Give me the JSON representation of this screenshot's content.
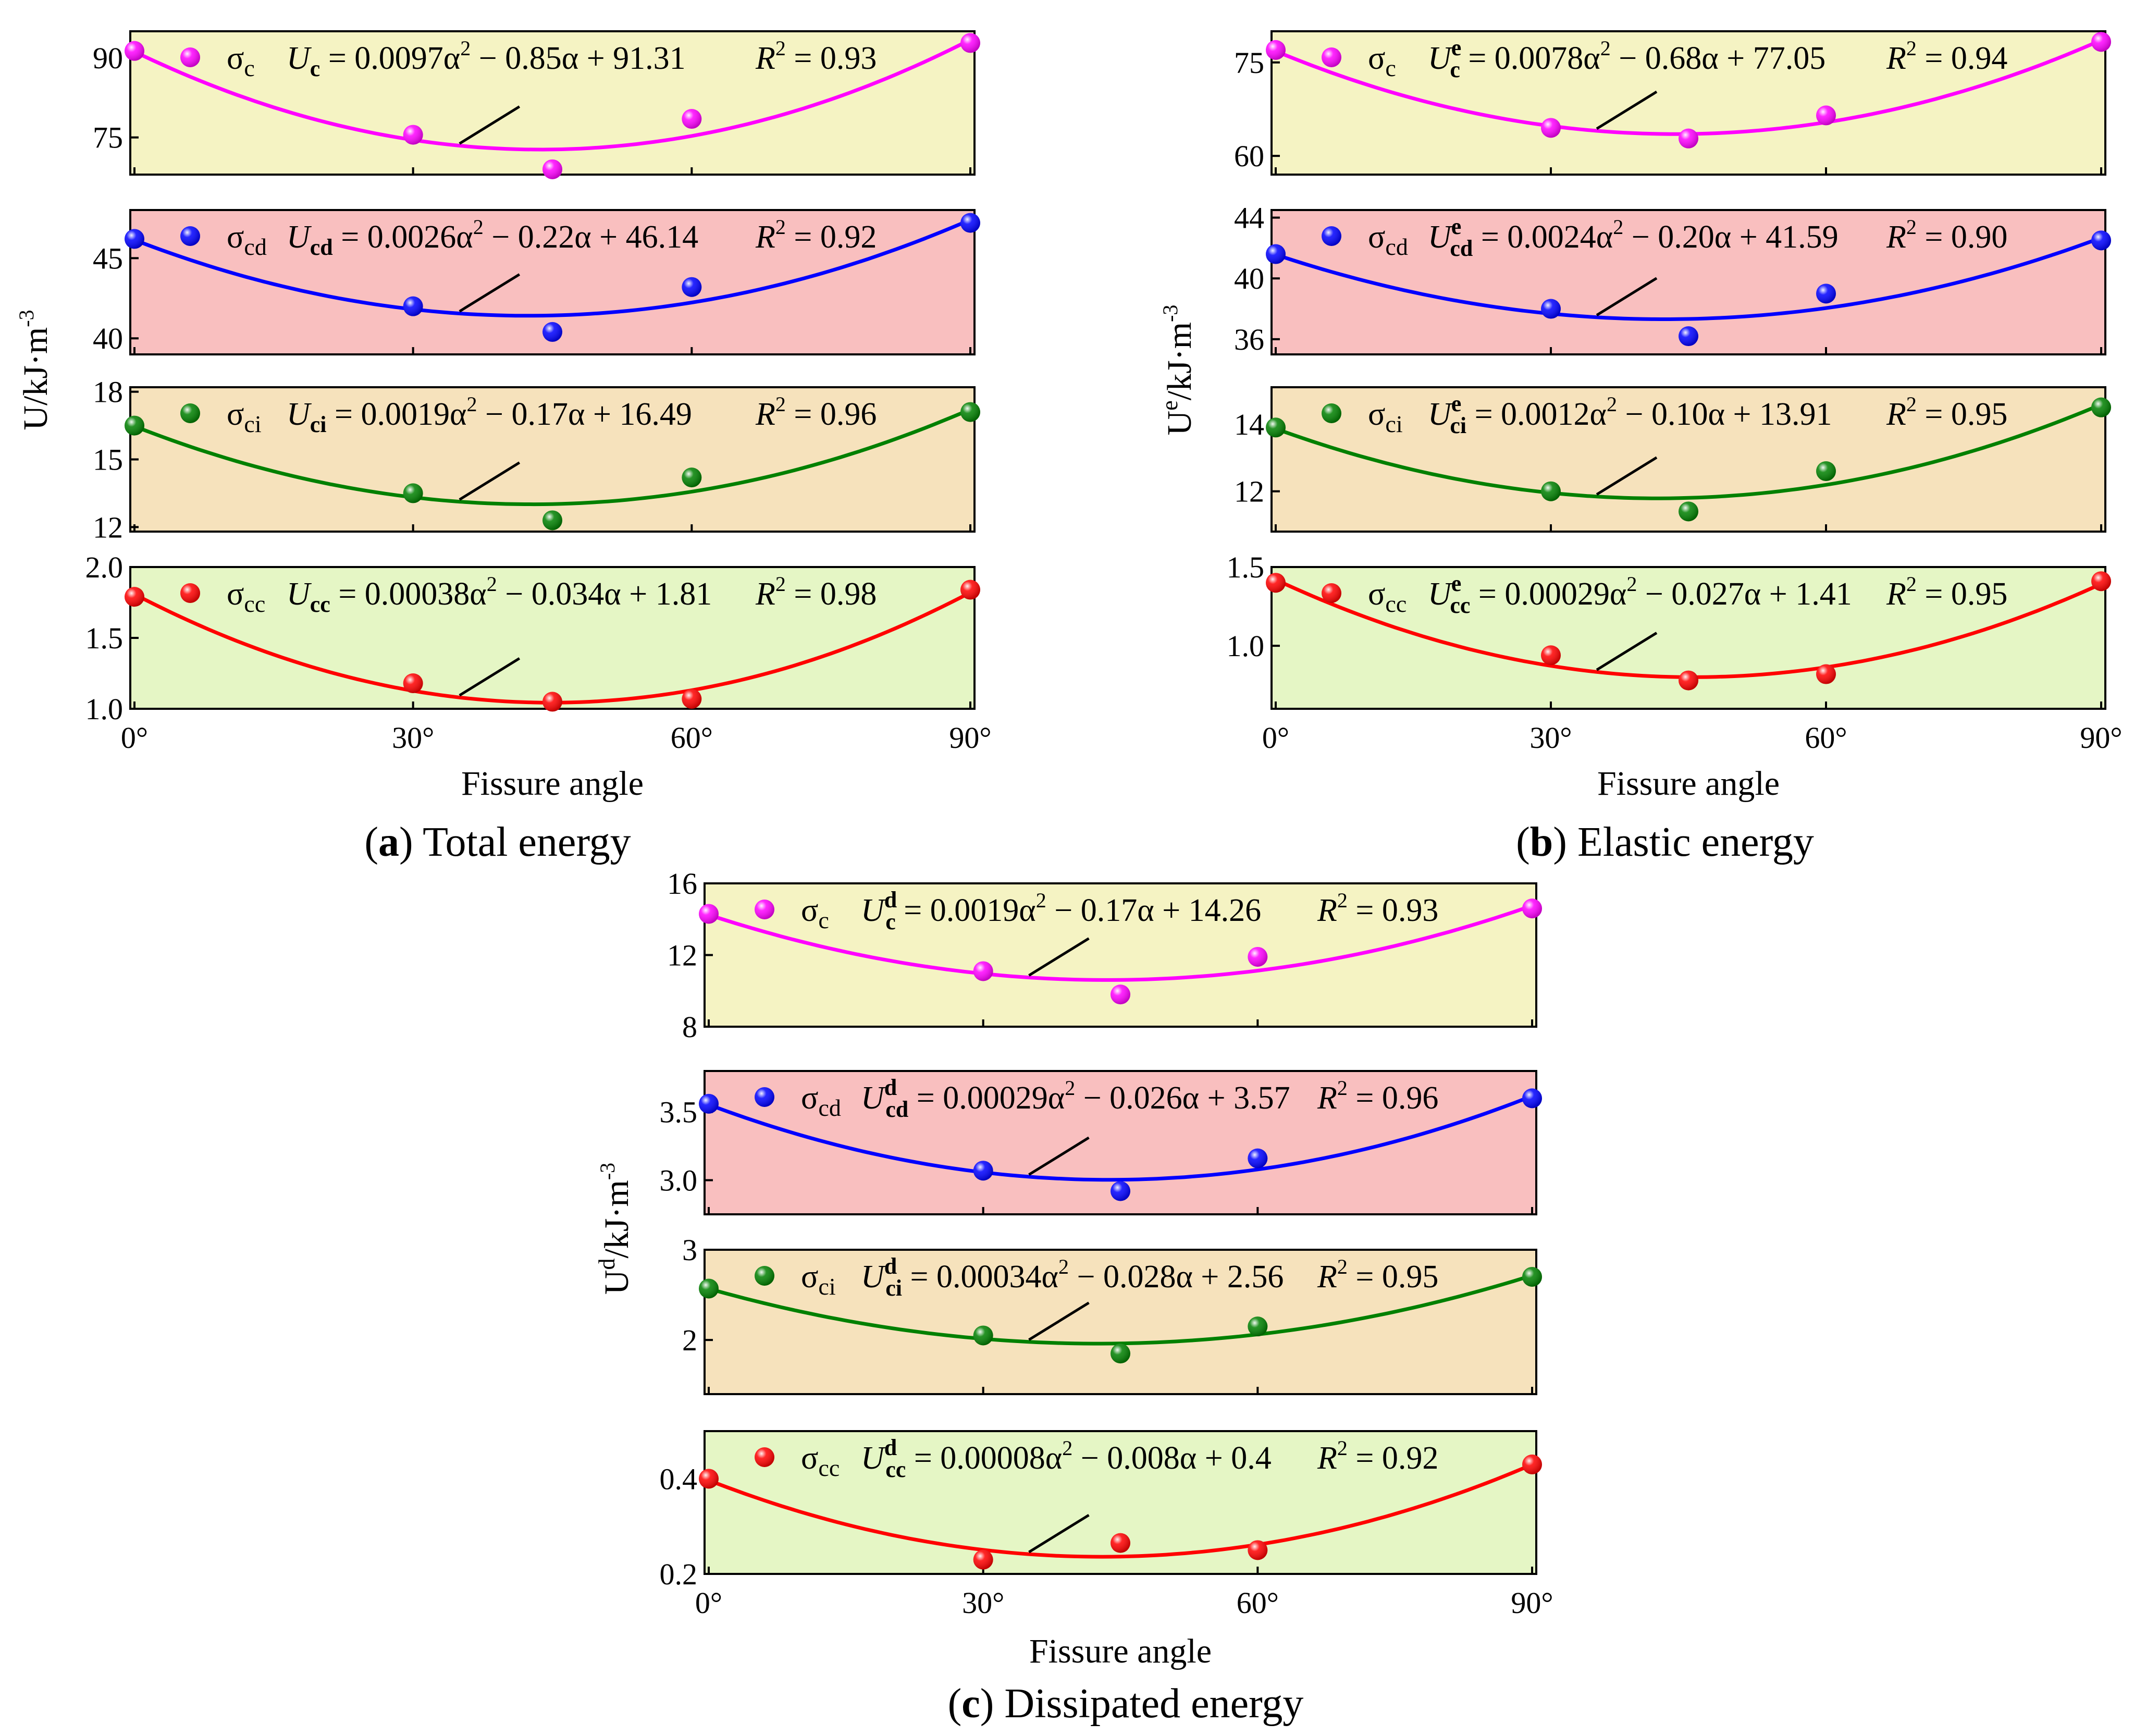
{
  "panels": [
    {
      "id": "a",
      "caption": {
        "letter": "a",
        "text": "Total energy"
      },
      "ylabel": {
        "base": "U",
        "sup": "",
        "unit": "/kJ·m",
        "unit_sup": "-3"
      },
      "xlabel": "Fissure angle",
      "xticks": [
        "0°",
        "30°",
        "60°",
        "90°"
      ],
      "subplots": [
        {
          "bg": "#f5f3c3",
          "color": "#ff00ff",
          "legend": {
            "sym": "σ",
            "sub": "c"
          },
          "eq": {
            "u": "U",
            "sub": "c",
            "sup": "",
            "a2": "0.0097",
            "a1": "0.85",
            "c": "91.31"
          },
          "r2": "0.93",
          "ylim": [
            68,
            95
          ],
          "yticks": [
            "90",
            "75"
          ],
          "yticks_values": [
            90,
            75
          ],
          "chart_data": {
            "type": "scatter",
            "x": [
              0,
              30,
              45,
              60,
              90
            ],
            "y": [
              91.3,
              75.5,
              69.0,
              78.5,
              92.8
            ]
          }
        },
        {
          "bg": "#f9bfbf",
          "color": "#0000ff",
          "legend": {
            "sym": "σ",
            "sub": "cd"
          },
          "eq": {
            "u": "U",
            "sub": "cd",
            "sup": "",
            "a2": "0.0026",
            "a1": "0.22",
            "c": "46.14"
          },
          "r2": "0.92",
          "ylim": [
            39,
            48
          ],
          "yticks": [
            "45",
            "40"
          ],
          "yticks_values": [
            45,
            40
          ],
          "chart_data": {
            "type": "scatter",
            "x": [
              0,
              30,
              45,
              60,
              90
            ],
            "y": [
              46.2,
              42.0,
              40.4,
              43.2,
              47.2
            ]
          }
        },
        {
          "bg": "#f6e2bc",
          "color": "#008000",
          "legend": {
            "sym": "σ",
            "sub": "ci"
          },
          "eq": {
            "u": "U",
            "sub": "ci",
            "sup": "",
            "a2": "0.0019",
            "a1": "0.17",
            "c": "16.49"
          },
          "r2": "0.96",
          "ylim": [
            11.8,
            18.2
          ],
          "yticks": [
            "18",
            "15",
            "12"
          ],
          "yticks_values": [
            18,
            15,
            12
          ],
          "chart_data": {
            "type": "scatter",
            "x": [
              0,
              30,
              45,
              60,
              90
            ],
            "y": [
              16.5,
              13.5,
              12.3,
              14.2,
              17.1
            ]
          }
        },
        {
          "bg": "#e5f6c5",
          "color": "#ff0000",
          "legend": {
            "sym": "σ",
            "sub": "cc"
          },
          "eq": {
            "u": "U",
            "sub": "cc",
            "sup": "",
            "a2": "0.00038",
            "a1": "0.034",
            "c": "1.81"
          },
          "r2": "0.98",
          "ylim": [
            1.0,
            2.0
          ],
          "yticks": [
            "2.0",
            "1.5",
            "1.0"
          ],
          "yticks_values": [
            2.0,
            1.5,
            1.0
          ],
          "chart_data": {
            "type": "scatter",
            "x": [
              0,
              30,
              45,
              60,
              90
            ],
            "y": [
              1.79,
              1.18,
              1.05,
              1.07,
              1.84
            ]
          }
        }
      ]
    },
    {
      "id": "b",
      "caption": {
        "letter": "b",
        "text": "Elastic energy"
      },
      "ylabel": {
        "base": "U",
        "sup": "e",
        "unit": "/kJ·m",
        "unit_sup": "-3"
      },
      "xlabel": "Fissure angle",
      "xticks": [
        "0°",
        "30°",
        "60°",
        "90°"
      ],
      "subplots": [
        {
          "bg": "#f5f3c3",
          "color": "#ff00ff",
          "legend": {
            "sym": "σ",
            "sub": "c"
          },
          "eq": {
            "u": "U",
            "sub": "c",
            "sup": "e",
            "a2": "0.0078",
            "a1": "0.68",
            "c": "77.05"
          },
          "r2": "0.94",
          "ylim": [
            57,
            80
          ],
          "yticks": [
            "75",
            "60"
          ],
          "yticks_values": [
            75,
            60
          ],
          "chart_data": {
            "type": "scatter",
            "x": [
              0,
              30,
              45,
              60,
              90
            ],
            "y": [
              77.0,
              64.5,
              62.8,
              66.5,
              78.3
            ]
          }
        },
        {
          "bg": "#f9bfbf",
          "color": "#0000ff",
          "legend": {
            "sym": "σ",
            "sub": "cd"
          },
          "eq": {
            "u": "U",
            "sub": "cd",
            "sup": "e",
            "a2": "0.0024",
            "a1": "0.20",
            "c": "41.59"
          },
          "r2": "0.90",
          "ylim": [
            35,
            44.5
          ],
          "yticks": [
            "44",
            "40",
            "36"
          ],
          "yticks_values": [
            44,
            40,
            36
          ],
          "chart_data": {
            "type": "scatter",
            "x": [
              0,
              30,
              45,
              60,
              90
            ],
            "y": [
              41.6,
              38.0,
              36.2,
              39.0,
              42.5
            ]
          }
        },
        {
          "bg": "#f6e2bc",
          "color": "#008000",
          "legend": {
            "sym": "σ",
            "sub": "ci"
          },
          "eq": {
            "u": "U",
            "sub": "ci",
            "sup": "e",
            "a2": "0.0012",
            "a1": "0.10",
            "c": "13.91"
          },
          "r2": "0.95",
          "ylim": [
            10.8,
            15.1
          ],
          "yticks": [
            "14",
            "12"
          ],
          "yticks_values": [
            14,
            12
          ],
          "chart_data": {
            "type": "scatter",
            "x": [
              0,
              30,
              45,
              60,
              90
            ],
            "y": [
              13.9,
              12.0,
              11.4,
              12.6,
              14.5
            ]
          }
        },
        {
          "bg": "#e5f6c5",
          "color": "#ff0000",
          "legend": {
            "sym": "σ",
            "sub": "cc"
          },
          "eq": {
            "u": "U",
            "sub": "cc",
            "sup": "e",
            "a2": "0.00029",
            "a1": "0.027",
            "c": "1.41"
          },
          "r2": "0.95",
          "ylim": [
            0.6,
            1.5
          ],
          "yticks": [
            "1.5",
            "1.0"
          ],
          "yticks_values": [
            1.5,
            1.0
          ],
          "chart_data": {
            "type": "scatter",
            "x": [
              0,
              30,
              45,
              60,
              90
            ],
            "y": [
              1.4,
              0.94,
              0.78,
              0.82,
              1.41
            ]
          }
        }
      ]
    },
    {
      "id": "c",
      "caption": {
        "letter": "c",
        "text": "Dissipated energy"
      },
      "ylabel": {
        "base": "U",
        "sup": "d",
        "unit": "/kJ·m",
        "unit_sup": "-3"
      },
      "xlabel": "Fissure angle",
      "xticks": [
        "0°",
        "30°",
        "60°",
        "90°"
      ],
      "subplots": [
        {
          "bg": "#f5f3c3",
          "color": "#ff00ff",
          "legend": {
            "sym": "σ",
            "sub": "c"
          },
          "eq": {
            "u": "U",
            "sub": "c",
            "sup": "d",
            "a2": "0.0019",
            "a1": "0.17",
            "c": "14.26"
          },
          "r2": "0.93",
          "ylim": [
            8,
            16
          ],
          "yticks": [
            "16",
            "12",
            "8"
          ],
          "yticks_values": [
            16,
            12,
            8
          ],
          "chart_data": {
            "type": "scatter",
            "x": [
              0,
              30,
              45,
              60,
              90
            ],
            "y": [
              14.3,
              11.1,
              9.8,
              11.9,
              14.6
            ]
          }
        },
        {
          "bg": "#f9bfbf",
          "color": "#0000ff",
          "legend": {
            "sym": "σ",
            "sub": "cd"
          },
          "eq": {
            "u": "U",
            "sub": "cd",
            "sup": "d",
            "a2": "0.00029",
            "a1": "0.026",
            "c": "3.57"
          },
          "r2": "0.96",
          "ylim": [
            2.75,
            3.8
          ],
          "yticks": [
            "3.5",
            "3.0"
          ],
          "yticks_values": [
            3.5,
            3.0
          ],
          "chart_data": {
            "type": "scatter",
            "x": [
              0,
              30,
              45,
              60,
              90
            ],
            "y": [
              3.56,
              3.07,
              2.92,
              3.16,
              3.6
            ]
          }
        },
        {
          "bg": "#f6e2bc",
          "color": "#008000",
          "legend": {
            "sym": "σ",
            "sub": "ci"
          },
          "eq": {
            "u": "U",
            "sub": "ci",
            "sup": "d",
            "a2": "0.00034",
            "a1": "0.028",
            "c": "2.56"
          },
          "r2": "0.95",
          "ylim": [
            1.4,
            3.0
          ],
          "yticks": [
            "3",
            "2"
          ],
          "yticks_values": [
            3,
            2
          ],
          "chart_data": {
            "type": "scatter",
            "x": [
              0,
              30,
              45,
              60,
              90
            ],
            "y": [
              2.57,
              2.05,
              1.85,
              2.15,
              2.7
            ]
          }
        },
        {
          "bg": "#e5f6c5",
          "color": "#ff0000",
          "legend": {
            "sym": "σ",
            "sub": "cc"
          },
          "eq": {
            "u": "U",
            "sub": "cc",
            "sup": "d",
            "a2": "0.00008",
            "a1": "0.008",
            "c": "0.4"
          },
          "r2": "0.92",
          "ylim": [
            0.2,
            0.5
          ],
          "yticks": [
            "0.4",
            "0.2"
          ],
          "yticks_values": [
            0.4,
            0.2
          ],
          "chart_data": {
            "type": "scatter",
            "x": [
              0,
              30,
              45,
              60,
              90
            ],
            "y": [
              0.4,
              0.23,
              0.265,
              0.25,
              0.43
            ]
          }
        }
      ]
    }
  ]
}
